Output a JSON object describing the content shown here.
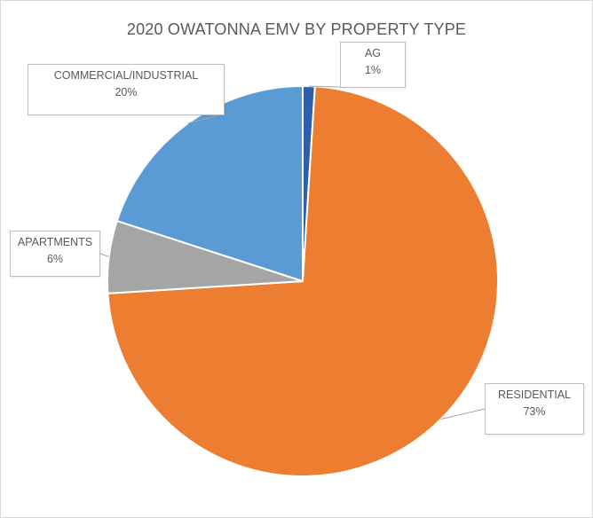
{
  "chart_data": {
    "type": "pie",
    "title": "2020 OWATONNA EMV BY PROPERTY TYPE",
    "slices": [
      {
        "label": "AG",
        "value": 1,
        "pct_label": "1%",
        "color": "#264478"
      },
      {
        "label": "RESIDENTIAL",
        "value": 73,
        "pct_label": "73%",
        "color": "#ED7D31"
      },
      {
        "label": "APARTMENTS",
        "value": 6,
        "pct_label": "6%",
        "color": "#A5A5A5"
      },
      {
        "label": "COMMERCIAL/INDUSTRIAL",
        "value": 20,
        "pct_label": "20%",
        "color": "#5B9BD5"
      }
    ],
    "slice_colors_note_ag": "#2E5FA8",
    "legend": "none",
    "labels": "callouts"
  }
}
